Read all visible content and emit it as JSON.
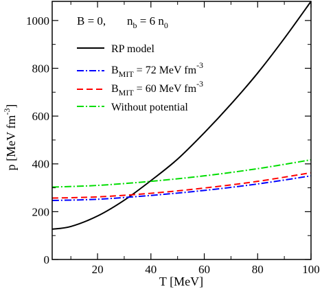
{
  "chart_data": {
    "type": "line",
    "annotation": {
      "b_text": "B = 0,",
      "n_main": "n",
      "n_sub": "b",
      "n_eq": " = 6 n",
      "n0_sub": "0"
    },
    "xlabel": "T [MeV]",
    "ylabel": {
      "main": "p [MeV fm",
      "sup": "-3",
      "close": "]"
    },
    "xlim": [
      3,
      100
    ],
    "ylim": [
      0,
      1080
    ],
    "x_ticks": [
      20,
      40,
      60,
      80,
      100
    ],
    "y_ticks": [
      0,
      200,
      400,
      600,
      800,
      1000
    ],
    "grid": false,
    "legend_position": "upper-left",
    "series": [
      {
        "name": "RP model",
        "color": "#000000",
        "dash": "solid",
        "x": [
          3,
          10,
          20,
          30,
          40,
          50,
          60,
          70,
          80,
          90,
          100
        ],
        "y": [
          127,
          138,
          182,
          248,
          330,
          420,
          530,
          650,
          780,
          925,
          1080
        ]
      },
      {
        "name_parts": {
          "main": "B",
          "sub": "MIT",
          "rest": " = 72 MeV fm",
          "sup": "-3"
        },
        "color": "#0000ff",
        "dash": "dashdot",
        "x": [
          3,
          20,
          40,
          60,
          80,
          100
        ],
        "y": [
          247,
          252,
          268,
          289,
          316,
          350
        ]
      },
      {
        "name_parts": {
          "main": "B",
          "sub": "MIT",
          "rest": " = 60 MeV fm",
          "sup": "-3"
        },
        "color": "#ff0000",
        "dash": "dashed",
        "x": [
          3,
          20,
          40,
          60,
          80,
          100
        ],
        "y": [
          257,
          262,
          277,
          299,
          327,
          363
        ]
      },
      {
        "name": "Without potential",
        "color": "#00dd00",
        "dash": "dashdot",
        "x": [
          3,
          20,
          40,
          60,
          80,
          100
        ],
        "y": [
          303,
          310,
          327,
          350,
          380,
          417
        ]
      }
    ]
  }
}
